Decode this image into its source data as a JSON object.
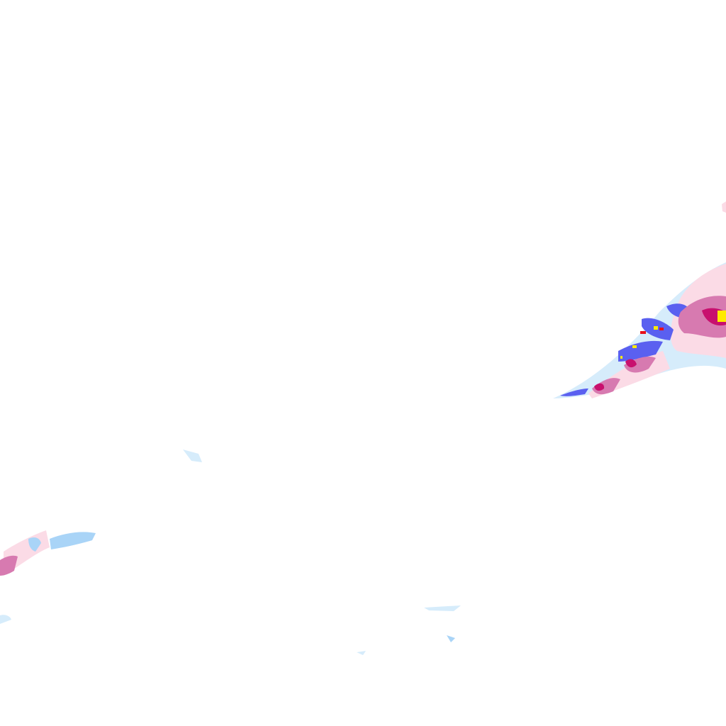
{
  "map": {
    "type": "precipitation-radar-tile",
    "background": "#ffffff",
    "palette": {
      "very_light_snow": "#d6ecfb",
      "light_snow": "#a9d4f7",
      "moderate_snow": "#5a60f0",
      "light_mix": "#fbdbe6",
      "moderate_mix": "#d77ab0",
      "heavy_mix": "#c8106e",
      "intense": "#ffea00",
      "extreme": "#e8101a"
    }
  }
}
